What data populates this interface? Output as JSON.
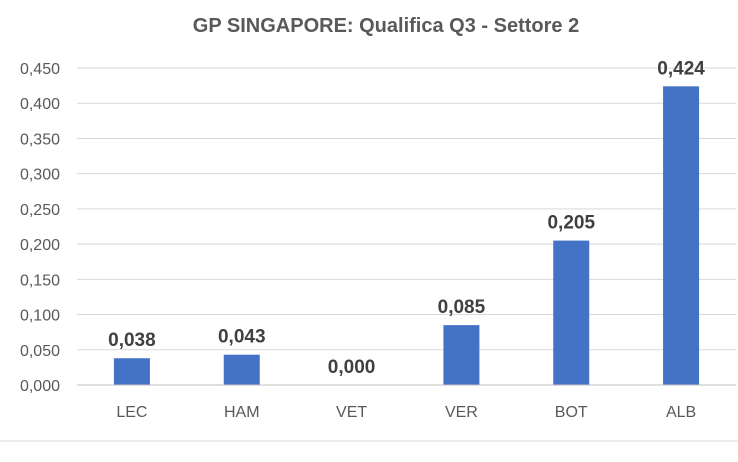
{
  "chart_data": {
    "type": "bar",
    "title": "GP SINGAPORE: Qualifica Q3 - Settore 2",
    "categories": [
      "LEC",
      "HAM",
      "VET",
      "VER",
      "BOT",
      "ALB"
    ],
    "values": [
      0.038,
      0.043,
      0.0,
      0.085,
      0.205,
      0.424
    ],
    "value_labels": [
      "0,038",
      "0,043",
      "0,000",
      "0,085",
      "0,205",
      "0,424"
    ],
    "ylim": [
      0,
      0.45
    ],
    "yticks": [
      0,
      0.05,
      0.1,
      0.15,
      0.2,
      0.25,
      0.3,
      0.35,
      0.4,
      0.45
    ],
    "ytick_labels": [
      "0,000",
      "0,050",
      "0,100",
      "0,150",
      "0,200",
      "0,250",
      "0,300",
      "0,350",
      "0,400",
      "0,450"
    ],
    "grid": true,
    "legend": "none",
    "bar_color": "#4472c4"
  }
}
